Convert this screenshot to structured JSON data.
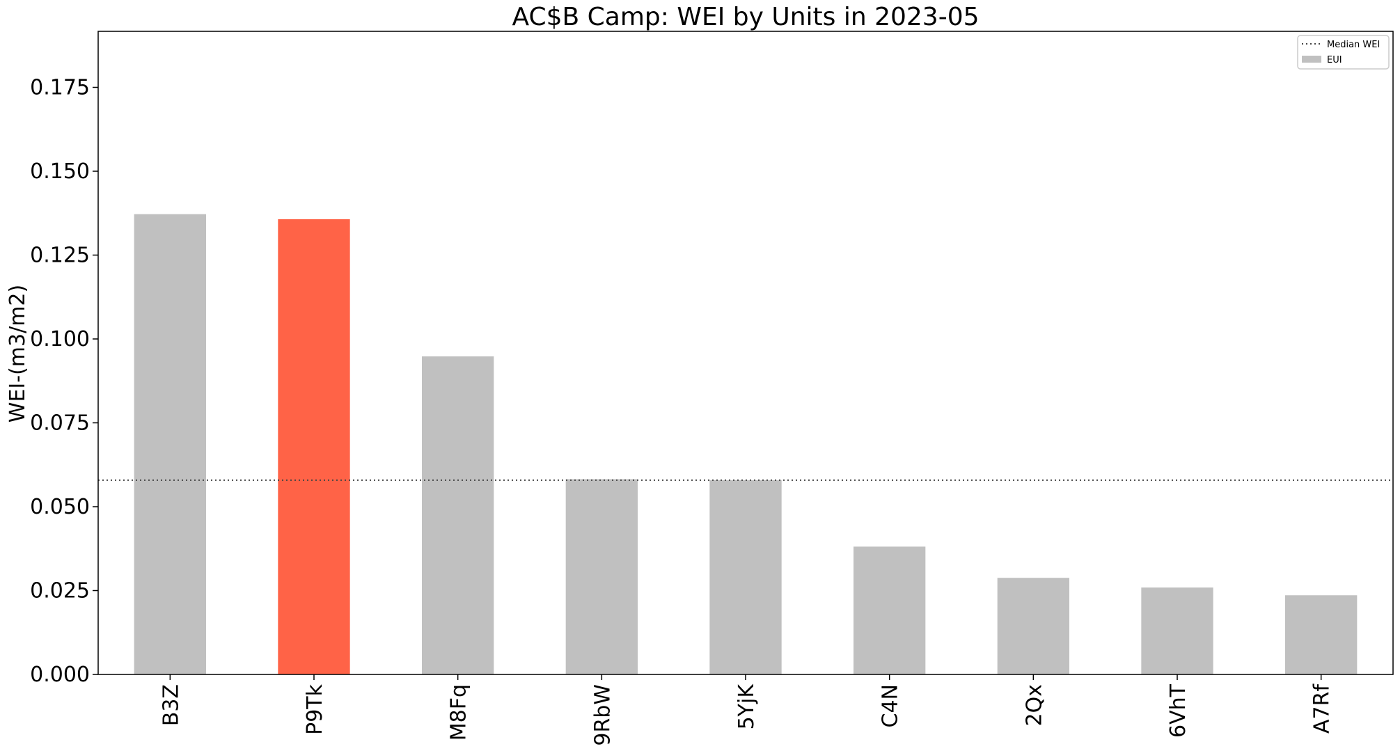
{
  "chart_data": {
    "type": "bar",
    "title": "AC$B Camp: WEI by Units in 2023-05",
    "xlabel": "",
    "ylabel": "WEI-(m3/m2)",
    "categories": [
      "B3Z",
      "P9Tk",
      "M8Fq",
      "9RbW",
      "5YjK",
      "C4N",
      "2Qx",
      "6VhT",
      "A7Rf"
    ],
    "series": [
      {
        "name": "EUI",
        "values": [
          0.1372,
          0.1357,
          0.0948,
          0.0582,
          0.0579,
          0.0381,
          0.0288,
          0.0259,
          0.0236
        ]
      }
    ],
    "highlight_index": 1,
    "median_line": {
      "name": "Median WEI",
      "value": 0.0579,
      "style": "dotted"
    },
    "ylim": [
      0,
      0.1917
    ],
    "yticks": [
      0.0,
      0.025,
      0.05,
      0.075,
      0.1,
      0.125,
      0.15,
      0.175
    ],
    "ytick_labels": [
      "0.000",
      "0.025",
      "0.050",
      "0.075",
      "0.100",
      "0.125",
      "0.150",
      "0.175"
    ],
    "grid": false,
    "legend_position": "top-right",
    "colors": {
      "bar": "#c0c0c0",
      "highlight": "#ff6347",
      "median_line": "#444444",
      "axis": "#000000"
    }
  }
}
